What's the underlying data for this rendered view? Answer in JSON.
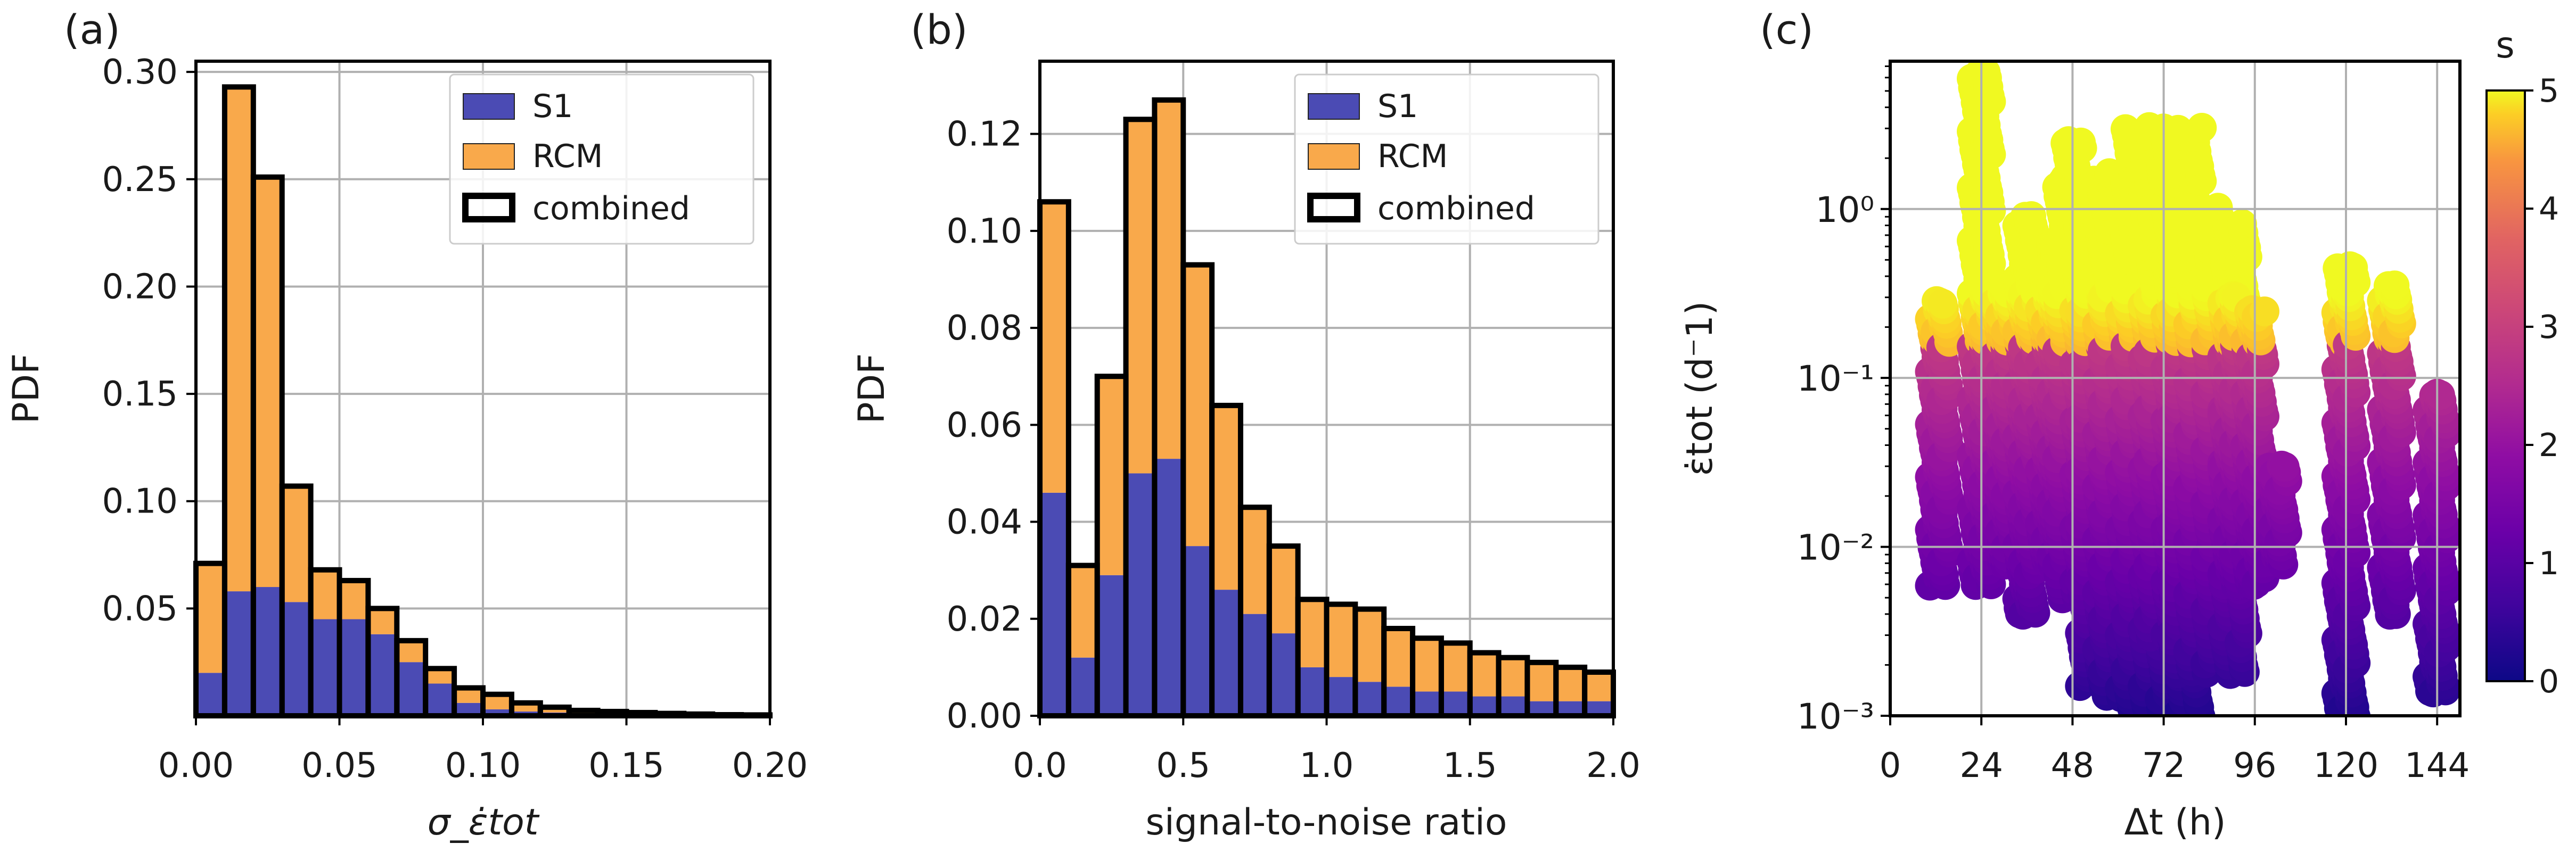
{
  "figure": {
    "panels": [
      "(a)",
      "(b)",
      "(c)"
    ],
    "colors": {
      "s1": "#4b4bb4",
      "rcm": "#f9a94b",
      "edge": "#000000",
      "grid": "#b0b0b0"
    }
  },
  "chart_data": [
    {
      "type": "bar",
      "panel": "(a)",
      "stacked": true,
      "title": "",
      "xlabel": "σ_ε̇tot",
      "ylabel": "PDF",
      "xlim": [
        0.0,
        0.2
      ],
      "ylim": [
        0.0,
        0.305
      ],
      "xticks": [
        "0.00",
        "0.05",
        "0.10",
        "0.15",
        "0.20"
      ],
      "yticks": [
        "0.05",
        "0.10",
        "0.15",
        "0.20",
        "0.25",
        "0.30"
      ],
      "bin_width": 0.01,
      "bin_starts": [
        0.0,
        0.01,
        0.02,
        0.03,
        0.04,
        0.05,
        0.06,
        0.07,
        0.08,
        0.09,
        0.1,
        0.11,
        0.12,
        0.13,
        0.14,
        0.15,
        0.16,
        0.17,
        0.18,
        0.19
      ],
      "series": [
        {
          "name": "S1",
          "values": [
            0.02,
            0.058,
            0.06,
            0.053,
            0.045,
            0.045,
            0.038,
            0.025,
            0.015,
            0.006,
            0.003,
            0.002,
            0.0015,
            0.001,
            0.0008,
            0.0005,
            0.0003,
            0.0002,
            0.0001,
            0.0001
          ]
        },
        {
          "name": "RCM",
          "values": [
            0.051,
            0.235,
            0.191,
            0.054,
            0.023,
            0.018,
            0.012,
            0.01,
            0.007,
            0.007,
            0.007,
            0.004,
            0.0025,
            0.0015,
            0.0012,
            0.001,
            0.0008,
            0.0006,
            0.0004,
            0.0003
          ]
        }
      ],
      "combined": [
        0.071,
        0.293,
        0.251,
        0.107,
        0.068,
        0.063,
        0.05,
        0.035,
        0.022,
        0.013,
        0.01,
        0.006,
        0.004,
        0.0025,
        0.002,
        0.0015,
        0.0011,
        0.0008,
        0.0005,
        0.0004
      ],
      "legend": [
        "S1",
        "RCM",
        "combined"
      ],
      "legend_position": "upper-right",
      "grid": true
    },
    {
      "type": "bar",
      "panel": "(b)",
      "stacked": true,
      "title": "",
      "xlabel": "signal-to-noise ratio",
      "ylabel": "PDF",
      "xlim": [
        0.0,
        2.0
      ],
      "ylim": [
        0.0,
        0.135
      ],
      "xticks": [
        "0.0",
        "0.5",
        "1.0",
        "1.5",
        "2.0"
      ],
      "yticks": [
        "0.00",
        "0.02",
        "0.04",
        "0.06",
        "0.08",
        "0.10",
        "0.12"
      ],
      "bin_width": 0.1,
      "bin_starts": [
        0.0,
        0.1,
        0.2,
        0.3,
        0.4,
        0.5,
        0.6,
        0.7,
        0.8,
        0.9,
        1.0,
        1.1,
        1.2,
        1.3,
        1.4,
        1.5,
        1.6,
        1.7,
        1.8,
        1.9
      ],
      "series": [
        {
          "name": "S1",
          "values": [
            0.046,
            0.012,
            0.029,
            0.05,
            0.053,
            0.035,
            0.026,
            0.021,
            0.017,
            0.01,
            0.008,
            0.007,
            0.006,
            0.005,
            0.005,
            0.004,
            0.004,
            0.003,
            0.003,
            0.003
          ]
        },
        {
          "name": "RCM",
          "values": [
            0.06,
            0.019,
            0.041,
            0.073,
            0.074,
            0.058,
            0.038,
            0.022,
            0.018,
            0.014,
            0.015,
            0.015,
            0.012,
            0.011,
            0.01,
            0.009,
            0.008,
            0.008,
            0.007,
            0.006
          ]
        }
      ],
      "combined": [
        0.106,
        0.031,
        0.07,
        0.123,
        0.127,
        0.093,
        0.064,
        0.043,
        0.035,
        0.024,
        0.023,
        0.022,
        0.018,
        0.016,
        0.015,
        0.013,
        0.012,
        0.011,
        0.01,
        0.009
      ],
      "legend": [
        "S1",
        "RCM",
        "combined"
      ],
      "legend_position": "upper-right",
      "grid": true
    },
    {
      "type": "scatter",
      "panel": "(c)",
      "title": "",
      "xlabel": "Δt (h)",
      "ylabel": "ε̇tot (d⁻1)",
      "xlim": [
        0,
        150
      ],
      "ylim": [
        0.001,
        7.5
      ],
      "yscale": "log",
      "xticks": [
        "0",
        "24",
        "48",
        "72",
        "96",
        "120",
        "144"
      ],
      "yticks": [
        "10⁻³",
        "10⁻²",
        "10⁻¹",
        "10⁰"
      ],
      "colorbar": {
        "label": "s",
        "min": 0,
        "max": 5,
        "ticks": [
          "0",
          "1",
          "2",
          "3",
          "4",
          "5"
        ],
        "colormap": "plasma"
      },
      "columns": [
        {
          "x": 13,
          "ymin": 0.006,
          "ymax": 0.28
        },
        {
          "x": 24,
          "ymin": 0.006,
          "ymax": 6.5
        },
        {
          "x": 30,
          "ymin": 0.008,
          "ymax": 0.35
        },
        {
          "x": 36,
          "ymin": 0.004,
          "ymax": 0.9
        },
        {
          "x": 42,
          "ymin": 0.008,
          "ymax": 0.6
        },
        {
          "x": 48,
          "ymin": 0.008,
          "ymax": 2.5
        },
        {
          "x": 54,
          "ymin": 0.005,
          "ymax": 1.5
        },
        {
          "x": 60,
          "ymin": 0.0015,
          "ymax": 1.2
        },
        {
          "x": 66,
          "ymin": 0.0013,
          "ymax": 1.6
        },
        {
          "x": 72,
          "ymin": 0.001,
          "ymax": 3.0
        },
        {
          "x": 78,
          "ymin": 0.003,
          "ymax": 1.0
        },
        {
          "x": 84,
          "ymin": 0.0018,
          "ymax": 0.8
        },
        {
          "x": 90,
          "ymin": 0.006,
          "ymax": 0.3
        },
        {
          "x": 96,
          "ymin": 0.006,
          "ymax": 0.25
        },
        {
          "x": 102,
          "ymin": 0.008,
          "ymax": 0.03
        },
        {
          "x": 120,
          "ymin": 0.001,
          "ymax": 0.45
        },
        {
          "x": 132,
          "ymin": 0.004,
          "ymax": 0.35
        },
        {
          "x": 144,
          "ymin": 0.0014,
          "ymax": 0.08
        }
      ],
      "grid": true
    }
  ]
}
